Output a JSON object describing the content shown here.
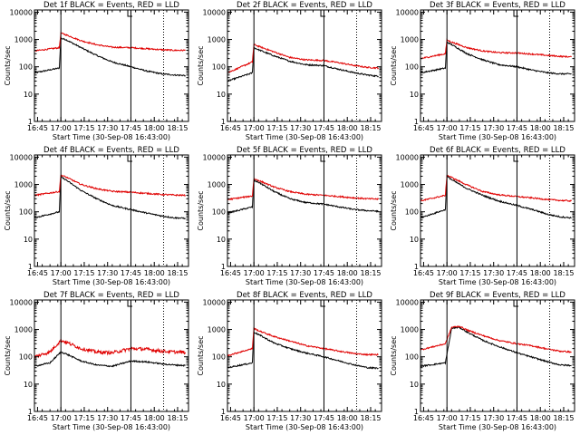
{
  "figure": {
    "ylabel": "Counts/sec",
    "xlabel": "Start Time (30-Sep-08 16:43:00)",
    "colors": {
      "events": "#000000",
      "lld": "#e00000",
      "axes": "#000000"
    }
  },
  "chart_data": [
    {
      "type": "line",
      "title": "Det 1f BLACK = Events, RED = LLD",
      "x_ticks": [
        "16:45",
        "17:00",
        "17:15",
        "17:30",
        "17:45",
        "18:00",
        "18:15"
      ],
      "y_ticks": [
        "1",
        "10",
        "100",
        "1000",
        "10000"
      ],
      "y_scale": "log",
      "ylim": [
        1,
        12000
      ],
      "x_unit": "minutes after 16:43",
      "xlim": [
        0,
        99
      ],
      "solid_vlines_min": [
        17,
        62
      ],
      "dotted_vlines_min": [
        83
      ],
      "series": [
        {
          "name": "Events",
          "color": "#000000",
          "x": [
            0,
            16,
            17,
            20,
            30,
            40,
            50,
            62,
            72,
            82,
            90,
            97
          ],
          "y": [
            60,
            90,
            1100,
            1000,
            500,
            260,
            150,
            100,
            70,
            55,
            50,
            48
          ]
        },
        {
          "name": "LLD",
          "color": "#e00000",
          "x": [
            0,
            16,
            17,
            20,
            30,
            40,
            50,
            62,
            72,
            82,
            90,
            97
          ],
          "y": [
            380,
            500,
            1700,
            1500,
            900,
            640,
            520,
            500,
            460,
            420,
            400,
            400
          ]
        }
      ]
    },
    {
      "type": "line",
      "title": "Det 2f BLACK = Events, RED = LLD",
      "x_ticks": [
        "16:45",
        "17:00",
        "17:15",
        "17:30",
        "17:45",
        "18:00",
        "18:15"
      ],
      "y_ticks": [
        "1",
        "10",
        "100",
        "1000",
        "10000"
      ],
      "y_scale": "log",
      "ylim": [
        1,
        12000
      ],
      "x_unit": "minutes after 16:43",
      "xlim": [
        0,
        99
      ],
      "solid_vlines_min": [
        17,
        62
      ],
      "dotted_vlines_min": [
        83
      ],
      "series": [
        {
          "name": "Events",
          "color": "#000000",
          "x": [
            0,
            16,
            17,
            20,
            30,
            40,
            50,
            62,
            72,
            82,
            90,
            97
          ],
          "y": [
            30,
            60,
            500,
            420,
            250,
            160,
            120,
            110,
            80,
            60,
            50,
            45
          ]
        },
        {
          "name": "LLD",
          "color": "#e00000",
          "x": [
            0,
            16,
            17,
            20,
            30,
            40,
            50,
            62,
            72,
            82,
            90,
            97
          ],
          "y": [
            60,
            150,
            650,
            560,
            350,
            220,
            180,
            170,
            140,
            110,
            95,
            90
          ]
        }
      ]
    },
    {
      "type": "line",
      "title": "Det 3f BLACK = Events, RED = LLD",
      "x_ticks": [
        "16:45",
        "17:00",
        "17:15",
        "17:30",
        "17:45",
        "18:00",
        "18:15"
      ],
      "y_ticks": [
        "1",
        "10",
        "100",
        "1000",
        "10000"
      ],
      "y_scale": "log",
      "ylim": [
        1,
        12000
      ],
      "x_unit": "minutes after 16:43",
      "xlim": [
        0,
        99
      ],
      "solid_vlines_min": [
        17,
        62
      ],
      "dotted_vlines_min": [
        83
      ],
      "series": [
        {
          "name": "Events",
          "color": "#000000",
          "x": [
            0,
            16,
            17,
            20,
            30,
            40,
            50,
            62,
            72,
            82,
            90,
            97
          ],
          "y": [
            60,
            90,
            800,
            650,
            300,
            180,
            120,
            100,
            75,
            60,
            55,
            55
          ]
        },
        {
          "name": "LLD",
          "color": "#e00000",
          "x": [
            0,
            16,
            17,
            20,
            30,
            40,
            50,
            62,
            72,
            82,
            90,
            97
          ],
          "y": [
            200,
            300,
            950,
            800,
            500,
            380,
            330,
            320,
            290,
            260,
            240,
            230
          ]
        }
      ]
    },
    {
      "type": "line",
      "title": "Det 4f BLACK = Events, RED = LLD",
      "x_ticks": [
        "16:45",
        "17:00",
        "17:15",
        "17:30",
        "17:45",
        "18:00",
        "18:15"
      ],
      "y_ticks": [
        "1",
        "10",
        "100",
        "1000",
        "10000"
      ],
      "y_scale": "log",
      "ylim": [
        1,
        12000
      ],
      "x_unit": "minutes after 16:43",
      "xlim": [
        0,
        99
      ],
      "solid_vlines_min": [
        17,
        62
      ],
      "dotted_vlines_min": [
        83
      ],
      "series": [
        {
          "name": "Events",
          "color": "#000000",
          "x": [
            0,
            16,
            17,
            20,
            30,
            40,
            50,
            62,
            72,
            82,
            90,
            97
          ],
          "y": [
            60,
            100,
            1900,
            1500,
            600,
            300,
            170,
            120,
            90,
            70,
            60,
            58
          ]
        },
        {
          "name": "LLD",
          "color": "#e00000",
          "x": [
            0,
            16,
            17,
            20,
            30,
            40,
            50,
            62,
            72,
            82,
            90,
            97
          ],
          "y": [
            400,
            550,
            2200,
            1900,
            1000,
            700,
            560,
            520,
            470,
            430,
            410,
            400
          ]
        }
      ]
    },
    {
      "type": "line",
      "title": "Det 5f BLACK = Events, RED = LLD",
      "x_ticks": [
        "16:45",
        "17:00",
        "17:15",
        "17:30",
        "17:45",
        "18:00",
        "18:15"
      ],
      "y_ticks": [
        "1",
        "10",
        "100",
        "1000",
        "10000"
      ],
      "y_scale": "log",
      "ylim": [
        1,
        12000
      ],
      "x_unit": "minutes after 16:43",
      "xlim": [
        0,
        99
      ],
      "solid_vlines_min": [
        17,
        62
      ],
      "dotted_vlines_min": [
        83
      ],
      "series": [
        {
          "name": "Events",
          "color": "#000000",
          "x": [
            0,
            16,
            17,
            20,
            30,
            40,
            50,
            62,
            72,
            82,
            90,
            97
          ],
          "y": [
            90,
            150,
            1400,
            1200,
            550,
            300,
            220,
            190,
            150,
            120,
            110,
            105
          ]
        },
        {
          "name": "LLD",
          "color": "#e00000",
          "x": [
            0,
            16,
            17,
            20,
            30,
            40,
            50,
            62,
            72,
            82,
            90,
            97
          ],
          "y": [
            280,
            380,
            1600,
            1400,
            800,
            550,
            440,
            400,
            360,
            320,
            300,
            290
          ]
        }
      ]
    },
    {
      "type": "line",
      "title": "Det 6f BLACK = Events, RED = LLD",
      "x_ticks": [
        "16:45",
        "17:00",
        "17:15",
        "17:30",
        "17:45",
        "18:00",
        "18:15"
      ],
      "y_ticks": [
        "1",
        "10",
        "100",
        "1000",
        "10000"
      ],
      "y_scale": "log",
      "ylim": [
        1,
        12000
      ],
      "x_unit": "minutes after 16:43",
      "xlim": [
        0,
        99
      ],
      "solid_vlines_min": [
        17,
        62
      ],
      "dotted_vlines_min": [
        83
      ],
      "series": [
        {
          "name": "Events",
          "color": "#000000",
          "x": [
            0,
            16,
            17,
            20,
            30,
            40,
            50,
            62,
            72,
            82,
            90,
            97
          ],
          "y": [
            60,
            120,
            2000,
            1500,
            700,
            400,
            250,
            170,
            120,
            80,
            65,
            60
          ]
        },
        {
          "name": "LLD",
          "color": "#e00000",
          "x": [
            0,
            16,
            17,
            20,
            30,
            40,
            50,
            62,
            72,
            82,
            90,
            97
          ],
          "y": [
            250,
            400,
            2200,
            1800,
            950,
            550,
            420,
            360,
            320,
            280,
            260,
            250
          ]
        }
      ]
    },
    {
      "type": "line",
      "title": "Det 7f BLACK = Events, RED = LLD",
      "x_ticks": [
        "16:45",
        "17:00",
        "17:15",
        "17:30",
        "17:45",
        "18:00",
        "18:15"
      ],
      "y_ticks": [
        "1",
        "10",
        "100",
        "1000",
        "10000"
      ],
      "y_scale": "log",
      "ylim": [
        1,
        12000
      ],
      "x_unit": "minutes after 16:43",
      "xlim": [
        0,
        99
      ],
      "solid_vlines_min": [
        17,
        62
      ],
      "dotted_vlines_min": [
        83
      ],
      "series": [
        {
          "name": "Events",
          "color": "#000000",
          "x": [
            0,
            10,
            17,
            20,
            30,
            40,
            50,
            62,
            72,
            82,
            90,
            97
          ],
          "y": [
            45,
            60,
            150,
            130,
            70,
            50,
            45,
            70,
            65,
            55,
            50,
            48
          ]
        },
        {
          "name": "LLD",
          "color": "#e00000",
          "x": [
            0,
            10,
            17,
            20,
            30,
            40,
            50,
            62,
            72,
            82,
            90,
            97
          ],
          "y": [
            100,
            150,
            400,
            350,
            200,
            150,
            140,
            200,
            190,
            160,
            150,
            145
          ]
        }
      ]
    },
    {
      "type": "line",
      "title": "Det 8f BLACK = Events, RED = LLD",
      "x_ticks": [
        "16:45",
        "17:00",
        "17:15",
        "17:30",
        "17:45",
        "18:00",
        "18:15"
      ],
      "y_ticks": [
        "1",
        "10",
        "100",
        "1000",
        "10000"
      ],
      "y_scale": "log",
      "ylim": [
        1,
        12000
      ],
      "x_unit": "minutes after 16:43",
      "xlim": [
        0,
        99
      ],
      "solid_vlines_min": [
        17,
        62
      ],
      "dotted_vlines_min": [
        83
      ],
      "series": [
        {
          "name": "Events",
          "color": "#000000",
          "x": [
            0,
            16,
            17,
            20,
            30,
            40,
            50,
            62,
            72,
            82,
            90,
            97
          ],
          "y": [
            40,
            60,
            800,
            650,
            320,
            200,
            140,
            100,
            70,
            50,
            40,
            38
          ]
        },
        {
          "name": "LLD",
          "color": "#e00000",
          "x": [
            0,
            16,
            17,
            20,
            30,
            40,
            50,
            62,
            72,
            82,
            90,
            97
          ],
          "y": [
            110,
            200,
            1100,
            900,
            550,
            380,
            260,
            200,
            160,
            130,
            120,
            120
          ]
        }
      ]
    },
    {
      "type": "line",
      "title": "Det 9f BLACK = Events, RED = LLD",
      "x_ticks": [
        "16:45",
        "17:00",
        "17:15",
        "17:30",
        "17:45",
        "18:00",
        "18:15"
      ],
      "y_ticks": [
        "1",
        "10",
        "100",
        "1000",
        "10000"
      ],
      "y_scale": "log",
      "ylim": [
        1,
        12000
      ],
      "x_unit": "minutes after 16:43",
      "xlim": [
        0,
        99
      ],
      "solid_vlines_min": [
        17,
        62
      ],
      "dotted_vlines_min": [
        83
      ],
      "series": [
        {
          "name": "Events",
          "color": "#000000",
          "x": [
            0,
            16,
            20,
            25,
            30,
            40,
            50,
            62,
            72,
            82,
            90,
            97
          ],
          "y": [
            45,
            60,
            1100,
            1200,
            800,
            400,
            240,
            140,
            95,
            65,
            50,
            48
          ]
        },
        {
          "name": "LLD",
          "color": "#e00000",
          "x": [
            0,
            16,
            20,
            25,
            30,
            40,
            50,
            62,
            72,
            82,
            90,
            97
          ],
          "y": [
            180,
            300,
            1200,
            1300,
            950,
            600,
            400,
            300,
            250,
            190,
            160,
            150
          ]
        }
      ]
    }
  ]
}
